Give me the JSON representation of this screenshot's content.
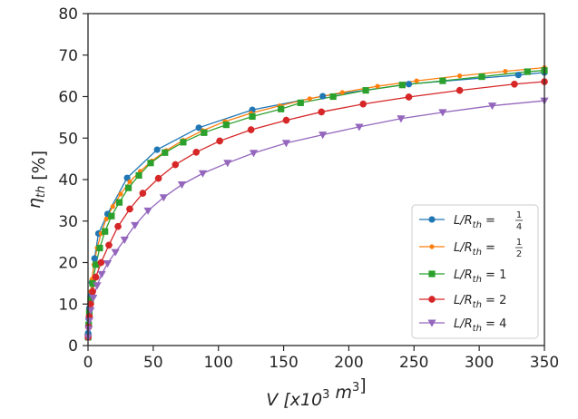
{
  "chart_data": {
    "type": "line",
    "xlabel": "V [x10³ m³]",
    "ylabel": "η_th [%]",
    "xlim": [
      0,
      350
    ],
    "ylim": [
      0,
      80
    ],
    "x_ticks": [
      0,
      50,
      100,
      150,
      200,
      250,
      300,
      350
    ],
    "y_ticks": [
      0,
      10,
      20,
      30,
      40,
      50,
      60,
      70,
      80
    ],
    "x_tick_labels": [
      "0",
      "50",
      "100",
      "150",
      "200",
      "250",
      "300",
      "350"
    ],
    "y_tick_labels": [
      "0",
      "10",
      "20",
      "30",
      "40",
      "50",
      "60",
      "70",
      "80"
    ],
    "grid": false,
    "legend_position": "lower-right",
    "series": [
      {
        "name": "L/R_th = 1/4",
        "legend": {
          "base": "L/R",
          "sub": "th",
          "eq": " = ",
          "num": "1",
          "den": "4"
        },
        "color": "#1f77b4",
        "marker": "circle",
        "x": [
          0.1,
          0.5,
          1,
          2,
          3,
          5,
          8,
          15,
          30,
          53,
          85,
          126,
          180,
          246,
          330,
          350
        ],
        "y": [
          3,
          6.5,
          9,
          12,
          15.2,
          21,
          27,
          31.7,
          40.4,
          47.2,
          52.5,
          56.8,
          60.1,
          63,
          65.2,
          65.8
        ]
      },
      {
        "name": "L/R_th = 1/2",
        "legend": {
          "base": "L/R",
          "sub": "th",
          "eq": " = ",
          "num": "1",
          "den": "2"
        },
        "color": "#ff7f0e",
        "marker": "circle-small",
        "x": [
          0.1,
          0.3,
          0.7,
          1.2,
          2,
          3,
          4.5,
          7,
          10,
          14,
          19,
          25,
          32,
          40,
          49,
          60,
          73,
          88,
          105,
          125,
          147,
          170,
          195,
          222,
          252,
          285,
          320,
          350
        ],
        "y": [
          2,
          4.5,
          7.5,
          10,
          13,
          16,
          19.5,
          23.5,
          27,
          30.5,
          33.5,
          36.5,
          39.5,
          42,
          44.5,
          47,
          49.5,
          51.8,
          54,
          56,
          57.8,
          59.5,
          61,
          62.5,
          63.8,
          65,
          66.1,
          67
        ]
      },
      {
        "name": "L/R_th = 1",
        "legend": {
          "base": "L/R",
          "sub": "th",
          "eq": " = ",
          "num": "",
          "den": "",
          "value": "1"
        },
        "color": "#2ca02c",
        "marker": "square",
        "x": [
          0.1,
          0.5,
          1,
          2,
          3.5,
          6,
          9,
          13,
          18,
          24,
          31,
          39,
          48,
          59,
          73,
          89,
          106,
          126,
          148,
          163,
          188,
          213,
          241,
          272,
          302,
          337,
          350
        ],
        "y": [
          2,
          5,
          8,
          11,
          15,
          19.5,
          23.5,
          27.5,
          31.2,
          34.5,
          38,
          41,
          44,
          46.5,
          49,
          51.3,
          53.2,
          55.2,
          57,
          58.5,
          60,
          61.5,
          62.8,
          63.8,
          64.8,
          66,
          66.3
        ]
      },
      {
        "name": "L/R_th = 2",
        "legend": {
          "base": "L/R",
          "sub": "th",
          "eq": " = ",
          "num": "",
          "den": "",
          "value": "2"
        },
        "color": "#d62728",
        "marker": "circle-plus",
        "x": [
          0.1,
          0.5,
          1,
          2,
          3.5,
          6,
          10,
          16,
          23,
          32,
          42,
          54,
          67,
          83,
          101,
          125,
          152,
          179,
          211,
          246,
          285,
          327,
          350
        ],
        "y": [
          2,
          4.5,
          7,
          10,
          13,
          16.5,
          20,
          24.2,
          28.7,
          32.9,
          36.7,
          40.3,
          43.6,
          46.6,
          49.3,
          52,
          54.3,
          56.3,
          58.2,
          59.9,
          61.5,
          63,
          63.6
        ]
      },
      {
        "name": "L/R_th = 4",
        "legend": {
          "base": "L/R",
          "sub": "th",
          "eq": " = ",
          "num": "",
          "den": "",
          "value": "4"
        },
        "color": "#9467bd",
        "marker": "triangle-down",
        "x": [
          0.1,
          0.5,
          1,
          2,
          4,
          7,
          10.5,
          15,
          21,
          28,
          36,
          46,
          58,
          72,
          88,
          107,
          127,
          152,
          180,
          208,
          240,
          272,
          310,
          350
        ],
        "y": [
          2,
          4,
          6,
          8.5,
          11.5,
          14.5,
          17.2,
          19.8,
          22.5,
          25.5,
          29,
          32.5,
          35.7,
          38.8,
          41.5,
          44,
          46.4,
          48.8,
          50.8,
          52.7,
          54.7,
          56.2,
          57.8,
          59
        ]
      }
    ]
  }
}
